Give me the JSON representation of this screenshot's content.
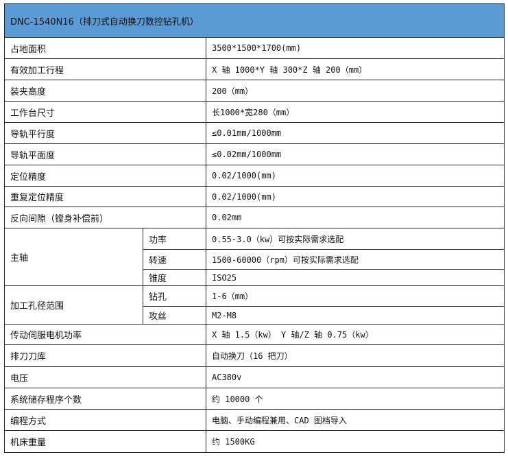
{
  "title": "DNC-1540N16（排刀式自动换刀数控钻孔机）",
  "rows": [
    {
      "label": "占地面积",
      "value": "3500*1500*1700(mm)"
    },
    {
      "label": "有效加工行程",
      "value": "X 轴 1000*Y 轴 300*Z 轴 200（mm）"
    },
    {
      "label": "装夹高度",
      "value": "200（mm）"
    },
    {
      "label": "工作台尺寸",
      "value": "长1000*宽280（mm）"
    },
    {
      "label": "导轨平行度",
      "value": "≤0.01mm/1000mm"
    },
    {
      "label": "导轨平面度",
      "value": "≤0.02mm/1000mm"
    },
    {
      "label": "定位精度",
      "value": "0.02/1000(mm)"
    },
    {
      "label": "重复定位精度",
      "value": "0.02/1000(mm)"
    },
    {
      "label": "反向间隙（镗身补偿前）",
      "value": "0.02mm"
    }
  ],
  "spindle": {
    "label": "主轴",
    "items": [
      {
        "label": "功率",
        "value": "0.55-3.0（kw）可按实际需求选配"
      },
      {
        "label": "转速",
        "value": "1500-60000（rpm）可按实际需求选配"
      },
      {
        "label": "锥度",
        "value": "ISO25"
      }
    ]
  },
  "hole_range": {
    "label": "加工孔径范围",
    "items": [
      {
        "label": "钻孔",
        "value": "1-6（mm）"
      },
      {
        "label": "攻丝",
        "value": "M2-M8"
      }
    ]
  },
  "rows2": [
    {
      "label": "传动伺服电机功率",
      "value": "X 轴 1.5（kw）  Y 轴/Z 轴 0.75（kw）"
    },
    {
      "label": "排刀刀库",
      "value": "自动换刀（16 把刀）"
    },
    {
      "label": "电压",
      "value": "AC380v"
    },
    {
      "label": "系统储存程序个数",
      "value": "约 10000 个"
    },
    {
      "label": "编程方式",
      "value": "电脑、手动编程兼用、CAD 图档导入"
    },
    {
      "label": "机床重量",
      "value": "约 1500KG"
    }
  ],
  "colors": {
    "header_bg": "#5b9bd5",
    "border": "#222222"
  }
}
